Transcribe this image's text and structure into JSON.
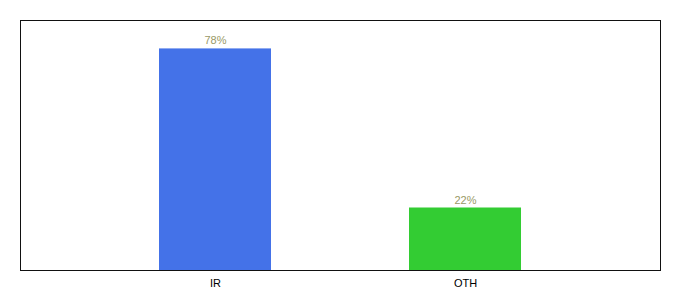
{
  "chart_data": {
    "type": "bar",
    "categories": [
      "IR",
      "OTH"
    ],
    "values": [
      78,
      22
    ],
    "value_labels": [
      "78%",
      "22%"
    ],
    "colors": [
      "#4472e8",
      "#33cc33"
    ],
    "ylim": [
      0,
      88
    ],
    "data_labels": true,
    "tick_labels": "x"
  }
}
